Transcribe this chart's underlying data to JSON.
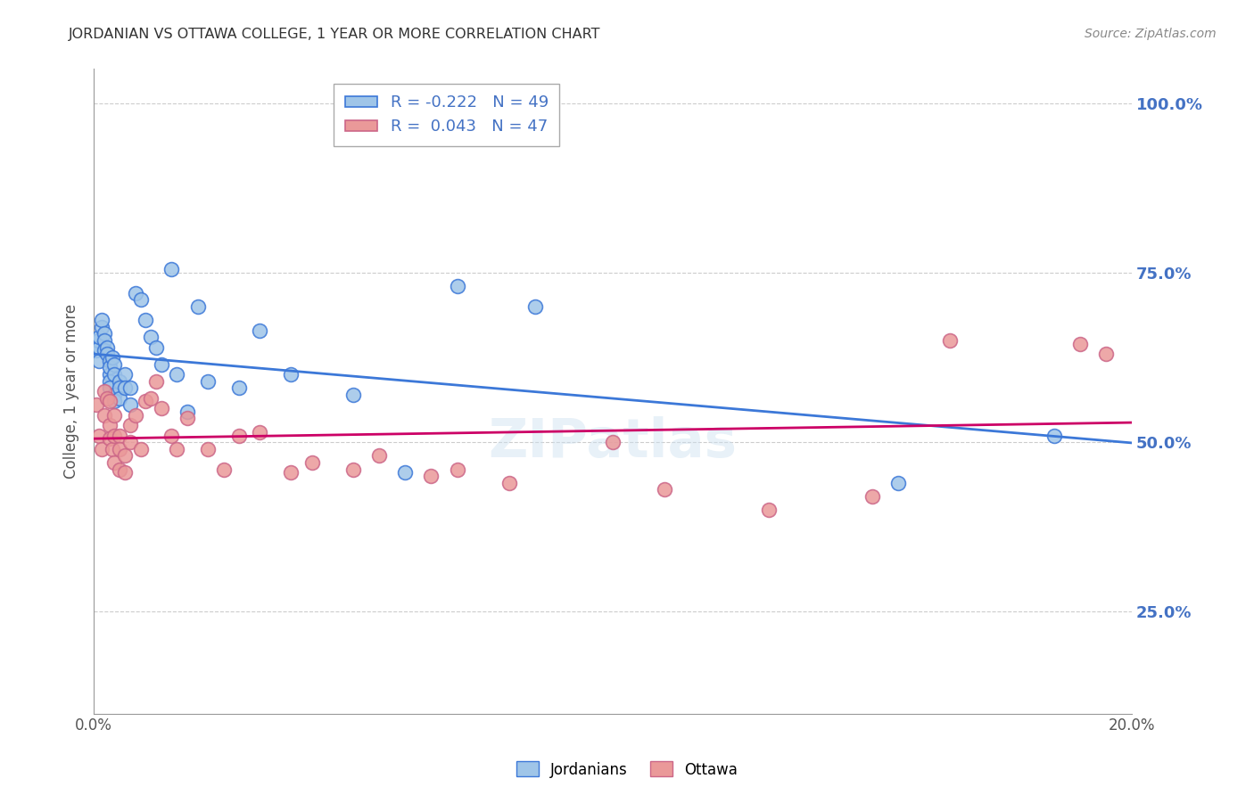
{
  "title": "JORDANIAN VS OTTAWA COLLEGE, 1 YEAR OR MORE CORRELATION CHART",
  "source": "Source: ZipAtlas.com",
  "ylabel": "College, 1 year or more",
  "xlim": [
    0.0,
    0.2
  ],
  "ylim": [
    0.1,
    1.05
  ],
  "blue_R": -0.222,
  "blue_N": 49,
  "pink_R": 0.043,
  "pink_N": 47,
  "blue_color": "#9fc5e8",
  "pink_color": "#ea9999",
  "blue_line_color": "#3c78d8",
  "pink_line_color": "#cc0066",
  "grid_color": "#cccccc",
  "background_color": "#ffffff",
  "title_color": "#333333",
  "axis_label_color": "#555555",
  "right_axis_color": "#4472c4",
  "right_ytick_labels": [
    "25.0%",
    "50.0%",
    "75.0%",
    "100.0%"
  ],
  "right_ytick_positions": [
    0.25,
    0.5,
    0.75,
    1.0
  ],
  "blue_points_x": [
    0.0005,
    0.0008,
    0.001,
    0.001,
    0.001,
    0.0015,
    0.0015,
    0.002,
    0.002,
    0.002,
    0.0025,
    0.0025,
    0.003,
    0.003,
    0.003,
    0.003,
    0.003,
    0.0035,
    0.004,
    0.004,
    0.004,
    0.004,
    0.005,
    0.005,
    0.005,
    0.006,
    0.006,
    0.007,
    0.007,
    0.008,
    0.009,
    0.01,
    0.011,
    0.012,
    0.013,
    0.015,
    0.016,
    0.018,
    0.02,
    0.022,
    0.028,
    0.032,
    0.038,
    0.05,
    0.06,
    0.07,
    0.085,
    0.155,
    0.185
  ],
  "blue_points_y": [
    0.635,
    0.65,
    0.64,
    0.655,
    0.62,
    0.67,
    0.68,
    0.66,
    0.65,
    0.635,
    0.64,
    0.63,
    0.62,
    0.6,
    0.59,
    0.61,
    0.58,
    0.625,
    0.615,
    0.6,
    0.57,
    0.56,
    0.59,
    0.58,
    0.565,
    0.6,
    0.58,
    0.555,
    0.58,
    0.72,
    0.71,
    0.68,
    0.655,
    0.64,
    0.615,
    0.755,
    0.6,
    0.545,
    0.7,
    0.59,
    0.58,
    0.665,
    0.6,
    0.57,
    0.455,
    0.73,
    0.7,
    0.44,
    0.51
  ],
  "pink_points_x": [
    0.0005,
    0.001,
    0.0015,
    0.002,
    0.002,
    0.0025,
    0.003,
    0.003,
    0.003,
    0.0035,
    0.004,
    0.004,
    0.004,
    0.005,
    0.005,
    0.005,
    0.006,
    0.006,
    0.007,
    0.007,
    0.008,
    0.009,
    0.01,
    0.011,
    0.012,
    0.013,
    0.015,
    0.016,
    0.018,
    0.022,
    0.025,
    0.028,
    0.032,
    0.038,
    0.042,
    0.05,
    0.055,
    0.065,
    0.07,
    0.08,
    0.1,
    0.11,
    0.13,
    0.15,
    0.165,
    0.19,
    0.195
  ],
  "pink_points_y": [
    0.555,
    0.51,
    0.49,
    0.575,
    0.54,
    0.565,
    0.525,
    0.505,
    0.56,
    0.49,
    0.47,
    0.54,
    0.51,
    0.51,
    0.49,
    0.46,
    0.48,
    0.455,
    0.5,
    0.525,
    0.54,
    0.49,
    0.56,
    0.565,
    0.59,
    0.55,
    0.51,
    0.49,
    0.535,
    0.49,
    0.46,
    0.51,
    0.515,
    0.455,
    0.47,
    0.46,
    0.48,
    0.45,
    0.46,
    0.44,
    0.5,
    0.43,
    0.4,
    0.42,
    0.65,
    0.645,
    0.63
  ]
}
